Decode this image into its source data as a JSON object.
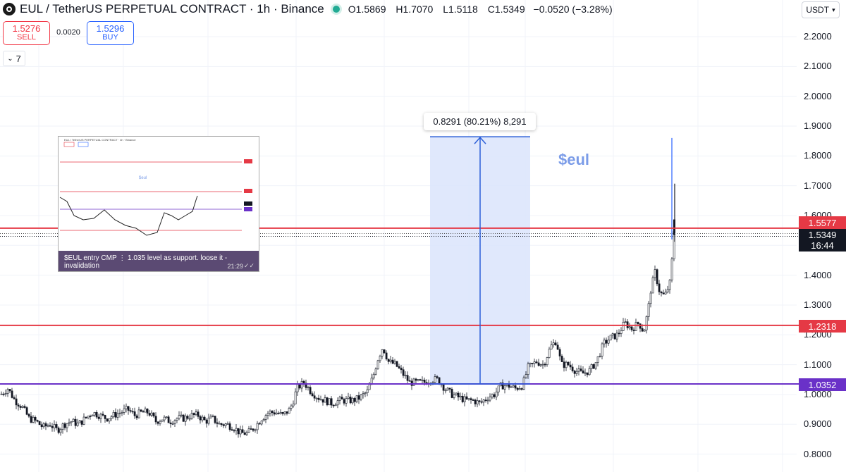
{
  "header": {
    "title": "EUL / TetherUS PERPETUAL CONTRACT · 1h · Binance",
    "ohlc": [
      {
        "k": "O",
        "v": "1.5869"
      },
      {
        "k": "H",
        "v": "1.7070"
      },
      {
        "k": "L",
        "v": "1.5118"
      },
      {
        "k": "C",
        "v": "1.5349"
      }
    ],
    "change": "−0.0520 (−3.28%)",
    "currency": "USDT"
  },
  "trade": {
    "sell_price": "1.5276",
    "sell_label": "SELL",
    "spread": "0.0020",
    "buy_price": "1.5296",
    "buy_label": "BUY"
  },
  "indicators_count": "7",
  "measure_label": "0.8291 (80.21%) 8,291",
  "symbol_note": "$eul",
  "embedded_post": {
    "caption": "$EUL entry CMP ⋮ 1.035 level as support. loose it - invalidation",
    "time": "21:29",
    "header": "EUL / TetherUS PERPETUAL CONTRACT · 4h · Binance",
    "symbol": "$eul"
  },
  "colors": {
    "up": "#131722",
    "down": "#131722",
    "wick_up": "#2962ff",
    "red_line": "#e53945",
    "purple_line": "#6a31c8",
    "measure_fill": "#dbe4fb",
    "measure_line": "#2c5fd8"
  },
  "price_labels": {
    "red_upper": "1.5577",
    "current": "1.5349",
    "countdown": "16:44",
    "red_lower": "1.2318",
    "purple": "1.0352"
  },
  "chart_data": {
    "type": "candlestick",
    "ylim": [
      0.76,
      2.26
    ],
    "y_ticks": [
      "2.2000",
      "2.1000",
      "2.0000",
      "1.9000",
      "1.8000",
      "1.7000",
      "1.6000",
      "1.5000",
      "1.4000",
      "1.3000",
      "1.2000",
      "1.1000",
      "1.0000",
      "0.9000",
      "0.8000"
    ],
    "horizontal_lines": [
      {
        "value": 1.5577,
        "color": "red"
      },
      {
        "value": 1.2318,
        "color": "red"
      },
      {
        "value": 1.0352,
        "color": "purple"
      },
      {
        "value": 1.5349,
        "style": "dotted"
      }
    ],
    "measure": {
      "from": 1.0352,
      "to": 1.8643,
      "change": 0.8291,
      "percent": 80.21
    },
    "close_path": [
      [
        0,
        1.0
      ],
      [
        10,
        1.02
      ],
      [
        20,
        0.98
      ],
      [
        30,
        0.96
      ],
      [
        40,
        0.92
      ],
      [
        50,
        0.91
      ],
      [
        60,
        0.89
      ],
      [
        70,
        0.9
      ],
      [
        80,
        0.88
      ],
      [
        90,
        0.9
      ],
      [
        100,
        0.91
      ],
      [
        110,
        0.9
      ],
      [
        120,
        0.92
      ],
      [
        130,
        0.94
      ],
      [
        140,
        0.93
      ],
      [
        150,
        0.92
      ],
      [
        160,
        0.93
      ],
      [
        170,
        0.94
      ],
      [
        180,
        0.95
      ],
      [
        190,
        0.93
      ],
      [
        200,
        0.94
      ],
      [
        210,
        0.94
      ],
      [
        220,
        0.91
      ],
      [
        230,
        0.92
      ],
      [
        240,
        0.91
      ],
      [
        250,
        0.92
      ],
      [
        260,
        0.92
      ],
      [
        270,
        0.93
      ],
      [
        280,
        0.93
      ],
      [
        290,
        0.91
      ],
      [
        300,
        0.92
      ],
      [
        310,
        0.9
      ],
      [
        320,
        0.9
      ],
      [
        330,
        0.89
      ],
      [
        340,
        0.87
      ],
      [
        350,
        0.87
      ],
      [
        360,
        0.89
      ],
      [
        370,
        0.92
      ],
      [
        380,
        0.94
      ],
      [
        390,
        0.94
      ],
      [
        400,
        0.93
      ],
      [
        410,
        0.95
      ],
      [
        415,
        0.98
      ],
      [
        420,
        1.02
      ],
      [
        430,
        1.04
      ],
      [
        440,
        1.01
      ],
      [
        450,
        0.99
      ],
      [
        460,
        0.98
      ],
      [
        470,
        0.97
      ],
      [
        480,
        0.98
      ],
      [
        490,
        0.98
      ],
      [
        500,
        0.98
      ],
      [
        510,
        0.99
      ],
      [
        520,
        1.01
      ],
      [
        528,
        1.06
      ],
      [
        535,
        1.12
      ],
      [
        542,
        1.16
      ],
      [
        550,
        1.11
      ],
      [
        560,
        1.1
      ],
      [
        570,
        1.07
      ],
      [
        580,
        1.04
      ],
      [
        590,
        1.04
      ],
      [
        600,
        1.04
      ],
      [
        610,
        1.05
      ],
      [
        620,
        1.05
      ],
      [
        630,
        1.02
      ],
      [
        640,
        1.0
      ],
      [
        650,
        0.99
      ],
      [
        660,
        0.98
      ],
      [
        670,
        0.98
      ],
      [
        680,
        0.97
      ],
      [
        690,
        0.99
      ],
      [
        700,
        1.0
      ],
      [
        710,
        1.03
      ],
      [
        720,
        1.03
      ],
      [
        730,
        1.02
      ],
      [
        740,
        1.03
      ],
      [
        748,
        1.09
      ],
      [
        760,
        1.11
      ],
      [
        770,
        1.1
      ],
      [
        780,
        1.16
      ],
      [
        788,
        1.18
      ],
      [
        795,
        1.1
      ],
      [
        805,
        1.1
      ],
      [
        815,
        1.08
      ],
      [
        825,
        1.07
      ],
      [
        835,
        1.08
      ],
      [
        845,
        1.11
      ],
      [
        855,
        1.17
      ],
      [
        865,
        1.19
      ],
      [
        875,
        1.2
      ],
      [
        885,
        1.24
      ],
      [
        895,
        1.22
      ],
      [
        905,
        1.24
      ],
      [
        912,
        1.21
      ],
      [
        918,
        1.28
      ],
      [
        922,
        1.35
      ],
      [
        928,
        1.41
      ],
      [
        935,
        1.34
      ],
      [
        942,
        1.33
      ],
      [
        950,
        1.38
      ],
      [
        955,
        1.55
      ],
      [
        958,
        1.53
      ]
    ]
  }
}
